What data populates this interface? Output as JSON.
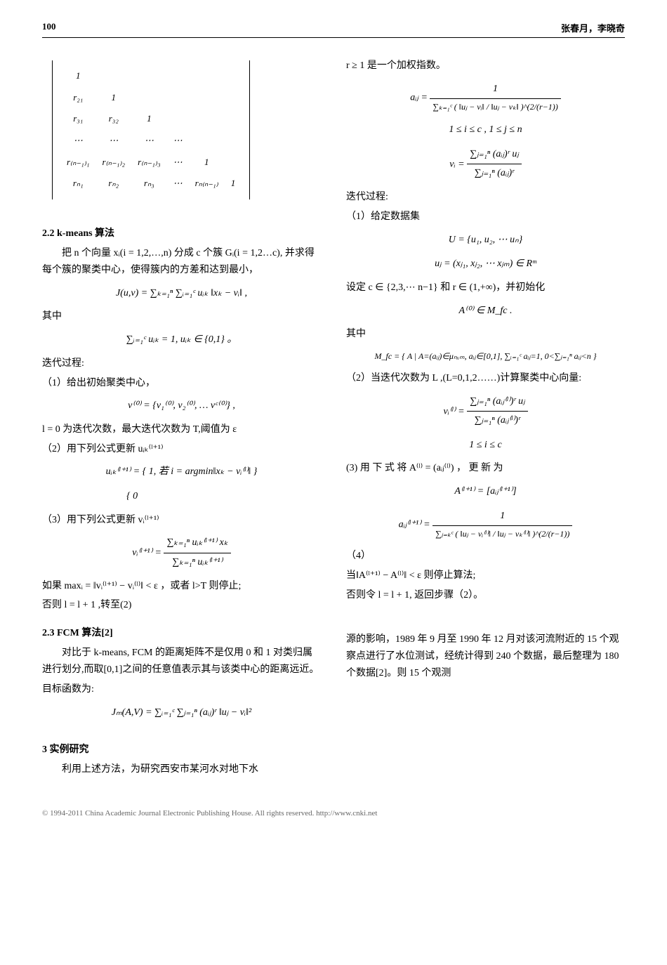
{
  "page": {
    "number": "100",
    "authors": "张春月，李晓奇"
  },
  "left": {
    "sec22_title": "2.2 k-means 算法",
    "kmeans_intro": "把 n 个向量 xᵢ(i = 1,2,…,n) 分成 c 个簇 Gᵢ(i = 1,2…c), 并求得每个簇的聚类中心，使得簇内的方差和达到最小，",
    "J_formula": "J(u,v) = ∑ₖ₌₁ⁿ ∑ᵢ₌₁ᶜ uᵢₖ ‖xₖ − vᵢ‖ ,",
    "qizhong1": "其中",
    "constraint": "∑ᵢ₌₁ᶜ uᵢₖ = 1, uᵢₖ ∈ {0,1} 。",
    "iter_title": "迭代过程:",
    "step1": "（1）给出初始聚类中心，",
    "v0_formula": "v⁽⁰⁾ = {v₁⁽⁰⁾, v₂⁽⁰⁾, … vᶜ⁽⁰⁾} ,",
    "l0_text": "l = 0 为迭代次数，最大迭代次数为 T,阈值为 ε",
    "step2": "（2）用下列公式更新 uᵢₖ⁽ˡ⁺¹⁾",
    "u_formula_line1": "uᵢₖ⁽ˡ⁺¹⁾ = { 1, 若 i = argmin‖xₖ − vᵢ⁽ˡ⁾‖ }",
    "u_formula_line2": "                 { 0",
    "step3": "（3）用下列公式更新 vᵢ⁽ˡ⁺¹⁾",
    "v_formula_num": "∑ₖ₌₁ⁿ uᵢₖ⁽ˡ⁺¹⁾ xₖ",
    "v_formula_den": "∑ₖ₌₁ⁿ uᵢₖ⁽ˡ⁺¹⁾",
    "v_prefix": "vᵢ⁽ˡ⁺¹⁾ = ",
    "stop_text": "如果 maxᵢ = ‖vᵢ⁽ˡ⁺¹⁾ − vᵢ⁽ˡ⁾‖ < ε ，或者 l>T 则停止;",
    "else_text": "否则 l = l + 1 ,转至(2)",
    "sec23_title": "2.3 FCM 算法[2]",
    "fcm_p1": "对比于 k-means, FCM 的距离矩阵不是仅用 0 和 1 对类归属进行划分,而取[0,1]之间的任意值表示其与该类中心的距离远近。",
    "obj_label": "目标函数为:",
    "Jm_formula": "Jₘ(A,V) = ∑ᵢ₌₁ᶜ ∑ⱼ₌₁ⁿ (aᵢⱼ)ʳ ‖uⱼ − vᵢ‖²",
    "sec3_title": "3 实例研究",
    "sec3_p1": "利用上述方法，为研究西安市某河水对地下水"
  },
  "right": {
    "r_text": "r ≥ 1 是一个加权指数。",
    "aij_prefix": "aᵢⱼ = ",
    "aij_num": "1",
    "aij_den": "∑ₖ₌₁ᶜ ( ‖uⱼ − vᵢ‖ / ‖uⱼ − vₖ‖ )^(2/(r−1))",
    "range1": "1 ≤ i ≤ c , 1 ≤ j ≤ n",
    "vi_prefix": "vᵢ = ",
    "vi_num": "∑ⱼ₌₁ⁿ (aᵢⱼ)ʳ uⱼ",
    "vi_den": "∑ⱼ₌₁ⁿ (aᵢⱼ)ʳ",
    "iter_title": "迭代过程:",
    "step1": "（1）给定数据集",
    "U_set": "U = {u₁, u₂, ⋯ uₙ}",
    "uj": "uⱼ = (xⱼ₁, xⱼ₂, ⋯ xⱼₘ) ∈ Rᵐ",
    "set_c": "设定 c ∈ {2,3,⋯ n−1} 和 r ∈ (1,+∞)，并初始化",
    "A0": "A⁽⁰⁾ ∈ M_fc .",
    "qizhong2": "其中",
    "Mfc": "M_fc = { A | A=(aᵢⱼ)∈μₙₓₘ, aᵢⱼ∈[0,1], ∑ᵢ₌₁ᶜ aᵢⱼ=1, 0<∑ⱼ₌₁ⁿ aᵢⱼ<n }",
    "step2": "（2）当迭代次数为 L ,(L=0,1,2……)计算聚类中心向量:",
    "viL_prefix": "vᵢ⁽ˡ⁾ = ",
    "viL_num": "∑ⱼ₌₁ⁿ (aᵢⱼ⁽ˡ⁾)ʳ uⱼ",
    "viL_den": "∑ⱼ₌₁ⁿ (aᵢⱼ⁽ˡ⁾)ʳ",
    "range2": "1 ≤ i ≤ c",
    "step3_line1": "(3) 用 下 式 将 A⁽ˡ⁾ = (aᵢⱼ⁽ˡ⁾) ， 更 新 为",
    "Al1": "A⁽ˡ⁺¹⁾ = [aᵢⱼ⁽ˡ⁺¹⁾]",
    "aijL_prefix": "aᵢⱼ⁽ˡ⁺¹⁾ = ",
    "aijL_num": "1",
    "aijL_den": "∑ⱼ₌ₖᶜ ( ‖uⱼ − vᵢ⁽ˡ⁾‖ / ‖uⱼ − vₖ⁽ˡ⁾‖ )^(2/(r−1))",
    "step4": "（4）",
    "stop2": "当‖A⁽ˡ⁺¹⁾ − A⁽ˡ⁾‖ < ε 则停止算法;",
    "else2": "否则令 l = l + 1, 返回步骤（2）。",
    "orphan": "源的影响，1989 年 9 月至 1990 年 12 月对该河流附近的 15 个观察点进行了水位测试，经统计得到 240 个数据，最后整理为 180 个数据[2]。则 15 个观测"
  },
  "matrix": {
    "rows": [
      [
        "1",
        "",
        "",
        "",
        "",
        ""
      ],
      [
        "r₂₁",
        "1",
        "",
        "",
        "",
        ""
      ],
      [
        "r₃₁",
        "r₃₂",
        "1",
        "",
        "",
        ""
      ],
      [
        "⋯",
        "⋯",
        "⋯",
        "⋯",
        "",
        ""
      ],
      [
        "r₍ₙ₋₁₎₁",
        "r₍ₙ₋₁₎₂",
        "r₍ₙ₋₁₎₃",
        "⋯",
        "1",
        ""
      ],
      [
        "rₙ₁",
        "rₙ₂",
        "rₙ₃",
        "⋯",
        "rₙ₍ₙ₋₁₎",
        "1"
      ]
    ]
  },
  "footer": "© 1994-2011 China Academic Journal Electronic Publishing House. All rights reserved.   http://www.cnki.net"
}
